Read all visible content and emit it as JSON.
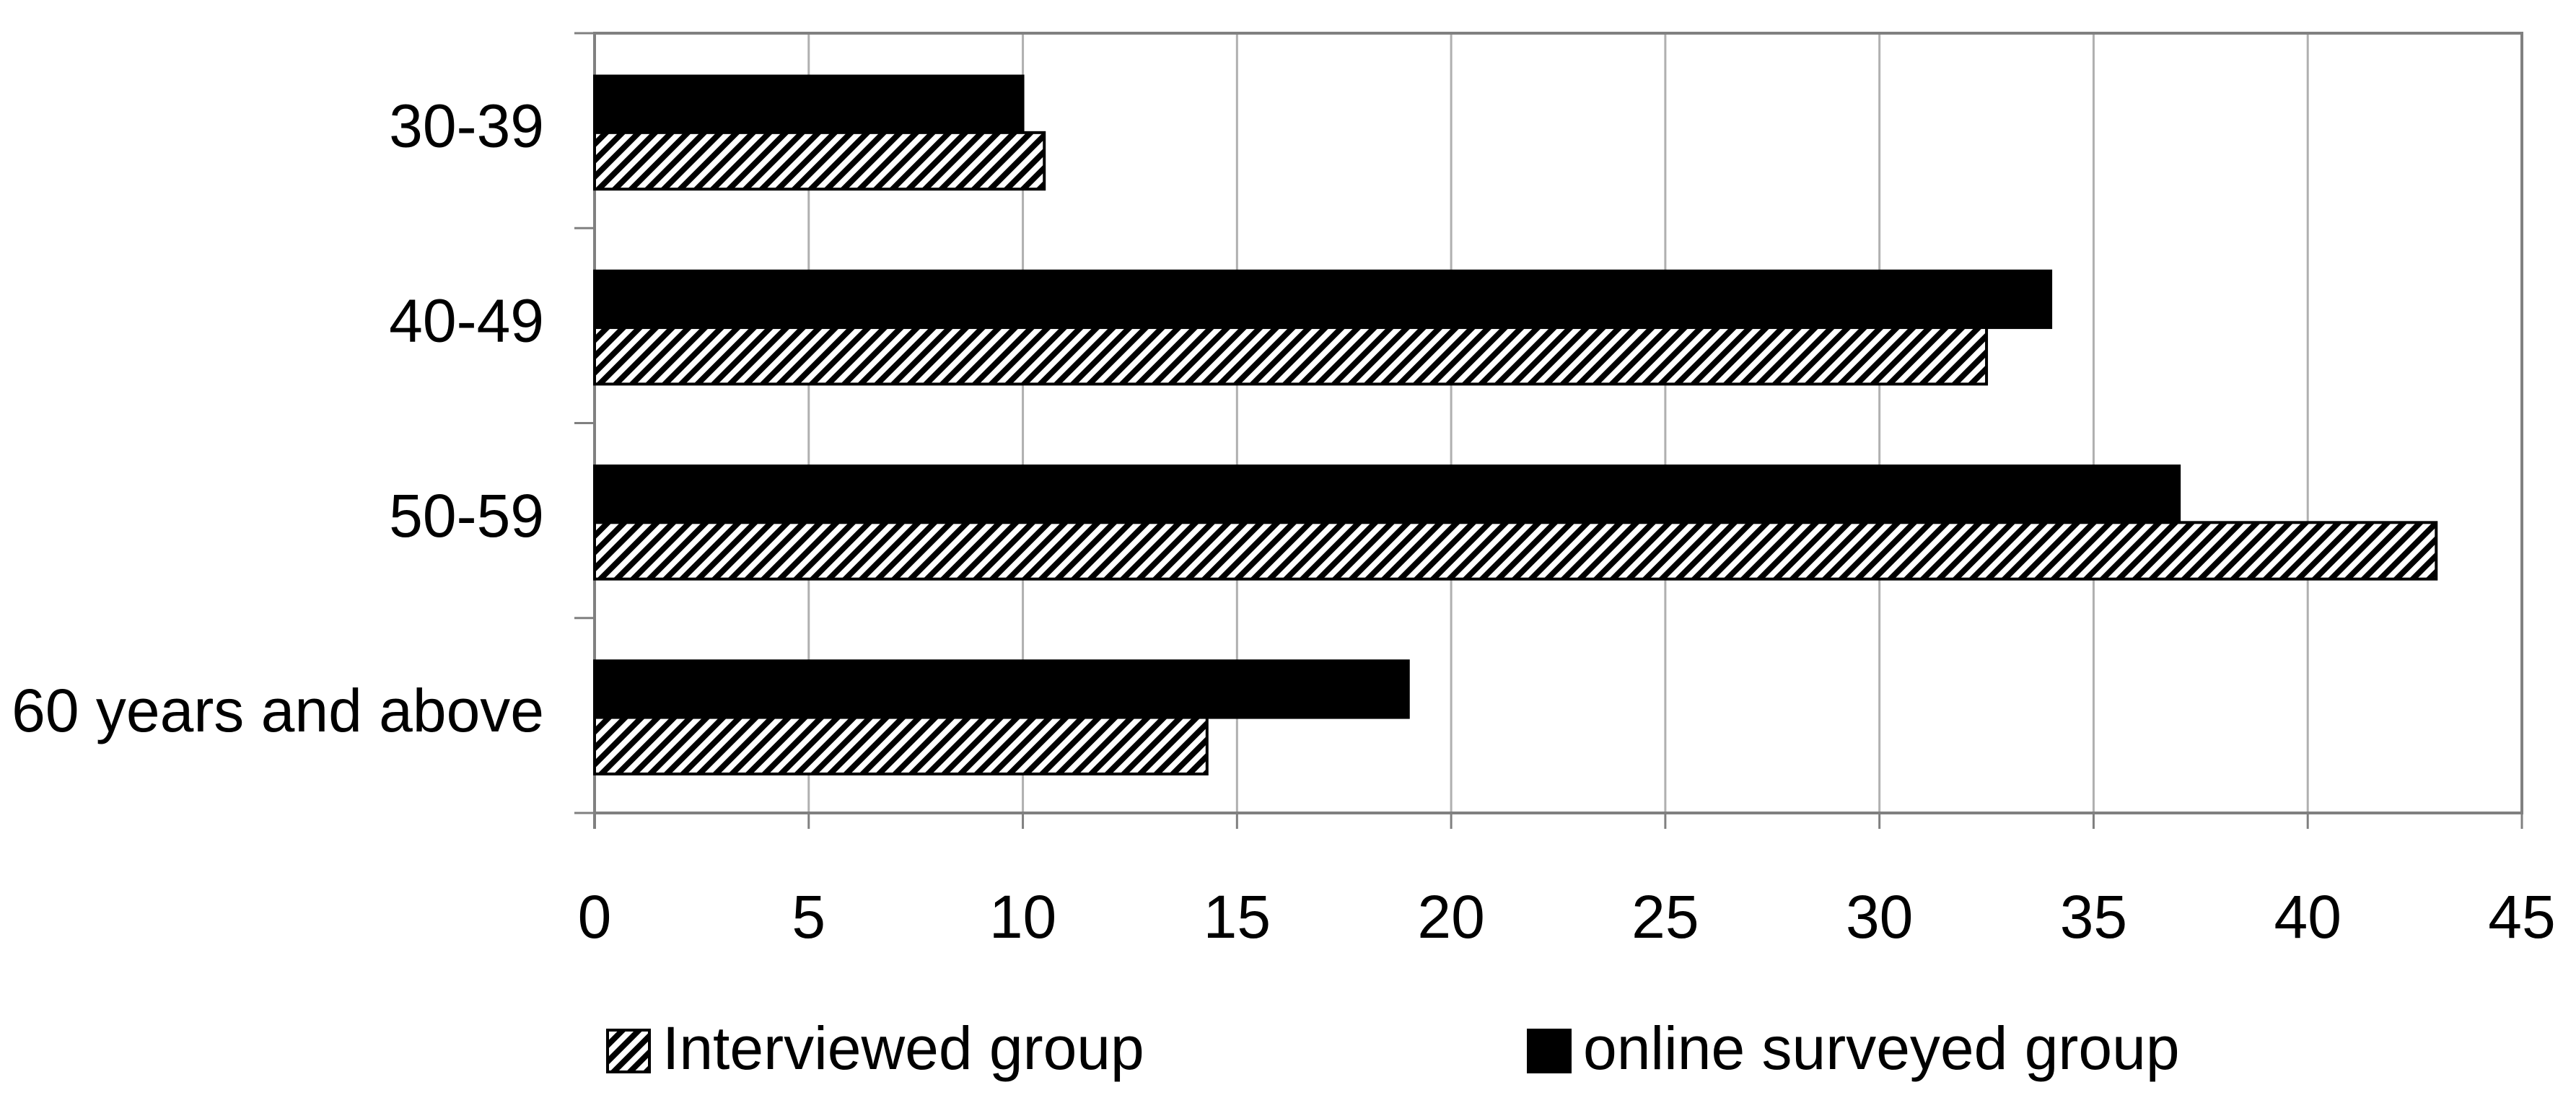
{
  "chart_data": {
    "type": "hbar",
    "categories": [
      "30-39",
      "40-49",
      "50-59",
      "60 years and above"
    ],
    "series": [
      {
        "name": "online surveyed group",
        "color": "#000000",
        "values": [
          10,
          34,
          37,
          19
        ]
      },
      {
        "name": "Interviewed group",
        "color": "#000000",
        "pattern": "diagonal-hatch",
        "values": [
          10.5,
          32.5,
          43,
          14.3
        ]
      }
    ],
    "legend_order": [
      "Interviewed group",
      "online surveyed group"
    ],
    "xlim": [
      0,
      45
    ],
    "xticks": [
      0,
      5,
      10,
      15,
      20,
      25,
      30,
      35,
      40,
      45
    ],
    "grid": true,
    "legend": "bottom"
  }
}
